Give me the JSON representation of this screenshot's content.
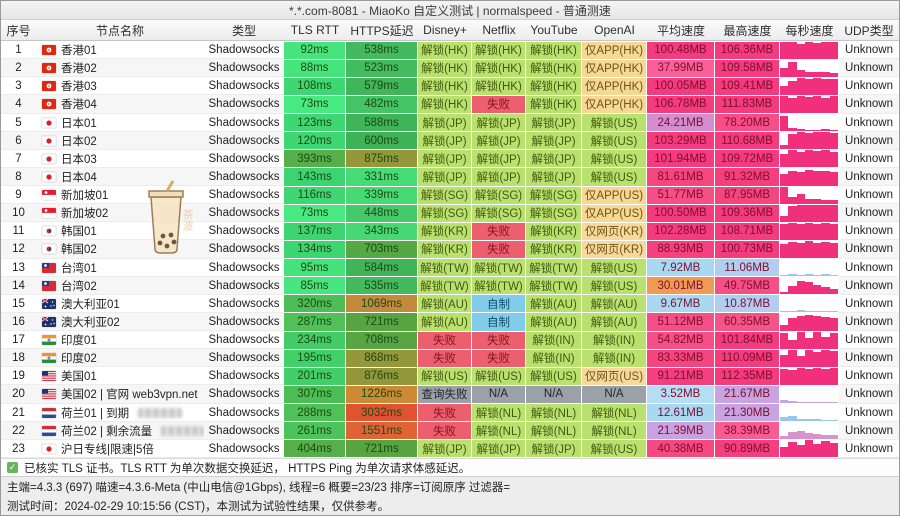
{
  "window": {
    "title": "*.*.com-8081 - MiaoKo 自定义测试 | normalspeed - 普通测速"
  },
  "columns": [
    "序号",
    "节点名称",
    "类型",
    "TLS RTT",
    "HTTPS延迟",
    "Disney+",
    "Netflix",
    "YouTube",
    "OpenAI",
    "平均速度",
    "最高速度",
    "每秒速度",
    "UDP类型"
  ],
  "palette": {
    "ok": {
      "bg": "#b9e16f",
      "fg": "#44590f"
    },
    "fail": {
      "bg": "#ed5f6f",
      "fg": "#7e1420"
    },
    "app": {
      "bg": "#f7d795",
      "fg": "#6e5410"
    },
    "web": {
      "bg": "#f7d99f",
      "fg": "#6e5410"
    },
    "self": {
      "bg": "#7fcdea",
      "fg": "#114a66"
    },
    "na": {
      "bg": "#9ba1a8",
      "fg": "#23262b"
    },
    "latency_fg": "#1c4a14",
    "speed_fg": "#7c0f2e",
    "spark_default": "#f0307c"
  },
  "rows": [
    {
      "no": "1",
      "flag": "hk",
      "name": "香港01",
      "type": "Shadowsocks",
      "tls": [
        "92ms",
        "#45e47c"
      ],
      "https": [
        "538ms",
        "#42ba5d"
      ],
      "media": [
        [
          "解锁(HK)",
          "ok"
        ],
        [
          "解锁(HK)",
          "ok"
        ],
        [
          "解锁(HK)",
          "ok"
        ],
        [
          "仅APP(HK)",
          "app"
        ]
      ],
      "avg": [
        "100.48MB",
        "#f43b7e"
      ],
      "max": [
        "106.36MB",
        "#f43b7e"
      ],
      "spark": {
        "bars": [
          0.95,
          1,
          0.85,
          1,
          0.9,
          1,
          0.95
        ],
        "color": "#f0307c"
      },
      "udp": "Unknown"
    },
    {
      "no": "2",
      "flag": "hk",
      "name": "香港02",
      "type": "Shadowsocks",
      "tls": [
        "88ms",
        "#45e47c"
      ],
      "https": [
        "523ms",
        "#43bc5f"
      ],
      "media": [
        [
          "解锁(HK)",
          "ok"
        ],
        [
          "解锁(HK)",
          "ok"
        ],
        [
          "解锁(HK)",
          "ok"
        ],
        [
          "仅APP(HK)",
          "app"
        ]
      ],
      "avg": [
        "37.99MB",
        "#fa5f97"
      ],
      "max": [
        "109.58MB",
        "#f43b7e"
      ],
      "spark": {
        "bars": [
          0.5,
          0.85,
          0.4,
          0.3,
          0.28,
          0.25,
          0.22
        ],
        "color": "#f0307c"
      },
      "udp": "Unknown"
    },
    {
      "no": "3",
      "flag": "hk",
      "name": "香港03",
      "type": "Shadowsocks",
      "tls": [
        "108ms",
        "#3ed773"
      ],
      "https": [
        "579ms",
        "#40b559"
      ],
      "media": [
        [
          "解锁(HK)",
          "ok"
        ],
        [
          "解锁(HK)",
          "ok"
        ],
        [
          "解锁(HK)",
          "ok"
        ],
        [
          "仅APP(HK)",
          "app"
        ]
      ],
      "avg": [
        "100.05MB",
        "#f43b7e"
      ],
      "max": [
        "109.41MB",
        "#f43b7e"
      ],
      "spark": {
        "bars": [
          0.5,
          0.8,
          1,
          0.95,
          1,
          0.9,
          0.95
        ],
        "color": "#f0307c"
      },
      "udp": "Unknown"
    },
    {
      "no": "4",
      "flag": "hk",
      "name": "香港04",
      "type": "Shadowsocks",
      "tls": [
        "73ms",
        "#48e980"
      ],
      "https": [
        "482ms",
        "#45c465"
      ],
      "media": [
        [
          "解锁(HK)",
          "ok"
        ],
        [
          "失败",
          "fail"
        ],
        [
          "解锁(HK)",
          "ok"
        ],
        [
          "仅APP(HK)",
          "app"
        ]
      ],
      "avg": [
        "106.78MB",
        "#f43b7e"
      ],
      "max": [
        "111.83MB",
        "#f43b7e"
      ],
      "spark": {
        "bars": [
          1,
          0.9,
          1,
          0.95,
          1,
          0.9,
          1
        ],
        "color": "#f0307c"
      },
      "udp": "Unknown"
    },
    {
      "no": "5",
      "flag": "jp",
      "name": "日本01",
      "type": "Shadowsocks",
      "tls": [
        "123ms",
        "#3ed773"
      ],
      "https": [
        "588ms",
        "#40b458"
      ],
      "media": [
        [
          "解锁(JP)",
          "ok"
        ],
        [
          "解锁(JP)",
          "ok"
        ],
        [
          "解锁(JP)",
          "ok"
        ],
        [
          "解锁(US)",
          "ok"
        ]
      ],
      "avg": [
        "24.21MB",
        "#d38ed0"
      ],
      "max": [
        "78.20MB",
        "#f64f87"
      ],
      "spark": {
        "bars": [
          0.9,
          0.18,
          0.1,
          0.08,
          0.08,
          0.1,
          0.08
        ],
        "color": "#f0307c"
      },
      "udp": "Unknown"
    },
    {
      "no": "6",
      "flag": "jp",
      "name": "日本02",
      "type": "Shadowsocks",
      "tls": [
        "120ms",
        "#3ed773"
      ],
      "https": [
        "600ms",
        "#3fb156"
      ],
      "media": [
        [
          "解锁(JP)",
          "ok"
        ],
        [
          "解锁(JP)",
          "ok"
        ],
        [
          "解锁(JP)",
          "ok"
        ],
        [
          "解锁(US)",
          "ok"
        ]
      ],
      "avg": [
        "103.29MB",
        "#f43b7e"
      ],
      "max": [
        "110.68MB",
        "#f43b7e"
      ],
      "spark": {
        "bars": [
          0.25,
          0.9,
          1,
          0.95,
          1,
          1,
          0.95
        ],
        "color": "#f0307c"
      },
      "udp": "Unknown"
    },
    {
      "no": "7",
      "flag": "jp",
      "name": "日本03",
      "type": "Shadowsocks",
      "tls": [
        "393ms",
        "#55b04a"
      ],
      "https": [
        "875ms",
        "#94983a"
      ],
      "media": [
        [
          "解锁(JP)",
          "ok"
        ],
        [
          "解锁(JP)",
          "ok"
        ],
        [
          "解锁(JP)",
          "ok"
        ],
        [
          "解锁(US)",
          "ok"
        ]
      ],
      "avg": [
        "101.94MB",
        "#f43b7e"
      ],
      "max": [
        "109.72MB",
        "#f43b7e"
      ],
      "spark": {
        "bars": [
          0.8,
          1,
          0.9,
          1,
          0.95,
          1,
          0.9
        ],
        "color": "#f0307c"
      },
      "udp": "Unknown"
    },
    {
      "no": "8",
      "flag": "jp",
      "name": "日本04",
      "type": "Shadowsocks",
      "tls": [
        "143ms",
        "#3cd471"
      ],
      "https": [
        "331ms",
        "#47db76"
      ],
      "media": [
        [
          "解锁(JP)",
          "ok"
        ],
        [
          "解锁(JP)",
          "ok"
        ],
        [
          "解锁(JP)",
          "ok"
        ],
        [
          "解锁(US)",
          "ok"
        ]
      ],
      "avg": [
        "81.61MB",
        "#f5477f"
      ],
      "max": [
        "91.32MB",
        "#f43f7e"
      ],
      "spark": {
        "bars": [
          0.65,
          0.85,
          0.8,
          0.88,
          0.82,
          0.85,
          0.8
        ],
        "color": "#f0307c"
      },
      "udp": "Unknown"
    },
    {
      "no": "9",
      "flag": "sg",
      "name": "新加坡01",
      "type": "Shadowsocks",
      "tls": [
        "116ms",
        "#3ed773"
      ],
      "https": [
        "339ms",
        "#46d974"
      ],
      "media": [
        [
          "解锁(SG)",
          "ok"
        ],
        [
          "解锁(SG)",
          "ok"
        ],
        [
          "解锁(SG)",
          "ok"
        ],
        [
          "仅APP(US)",
          "app"
        ]
      ],
      "avg": [
        "51.77MB",
        "#f64f87"
      ],
      "max": [
        "87.95MB",
        "#f5457f"
      ],
      "spark": {
        "bars": [
          1,
          0.4,
          0.55,
          0.3,
          0.25,
          0.2,
          0.2
        ],
        "color": "#f0307c"
      },
      "udp": "Unknown"
    },
    {
      "no": "10",
      "flag": "sg",
      "name": "新加坡02",
      "type": "Shadowsocks",
      "tls": [
        "73ms",
        "#48e980"
      ],
      "https": [
        "448ms",
        "#44ca68"
      ],
      "media": [
        [
          "解锁(SG)",
          "ok"
        ],
        [
          "解锁(SG)",
          "ok"
        ],
        [
          "解锁(SG)",
          "ok"
        ],
        [
          "仅APP(US)",
          "app"
        ]
      ],
      "avg": [
        "100.50MB",
        "#f43b7e"
      ],
      "max": [
        "109.36MB",
        "#f43b7e"
      ],
      "spark": {
        "bars": [
          0.35,
          0.9,
          1,
          0.95,
          1,
          0.95,
          1
        ],
        "color": "#f0307c"
      },
      "udp": "Unknown"
    },
    {
      "no": "11",
      "flag": "kr",
      "name": "韩国01",
      "type": "Shadowsocks",
      "tls": [
        "137ms",
        "#3dd572"
      ],
      "https": [
        "343ms",
        "#46d873"
      ],
      "media": [
        [
          "解锁(KR)",
          "ok"
        ],
        [
          "失败",
          "fail"
        ],
        [
          "解锁(KR)",
          "ok"
        ],
        [
          "仅网页(KR)",
          "web"
        ]
      ],
      "avg": [
        "102.28MB",
        "#f43b7e"
      ],
      "max": [
        "108.71MB",
        "#f43b7e"
      ],
      "spark": {
        "bars": [
          0.9,
          1,
          0.95,
          1,
          0.9,
          1,
          0.95
        ],
        "color": "#f0307c"
      },
      "udp": "Unknown"
    },
    {
      "no": "12",
      "flag": "kr",
      "name": "韩国02",
      "type": "Shadowsocks",
      "tls": [
        "134ms",
        "#3dd572"
      ],
      "https": [
        "703ms",
        "#55a844"
      ],
      "media": [
        [
          "解锁(KR)",
          "ok"
        ],
        [
          "失败",
          "fail"
        ],
        [
          "解锁(KR)",
          "ok"
        ],
        [
          "仅网页(KR)",
          "web"
        ]
      ],
      "avg": [
        "88.93MB",
        "#f5417e"
      ],
      "max": [
        "100.73MB",
        "#f43b7e"
      ],
      "spark": {
        "bars": [
          0.8,
          0.95,
          0.85,
          1,
          0.9,
          0.95,
          0.85
        ],
        "color": "#f0307c"
      },
      "udp": "Unknown"
    },
    {
      "no": "13",
      "flag": "tw",
      "name": "台湾01",
      "type": "Shadowsocks",
      "tls": [
        "95ms",
        "#44e27b"
      ],
      "https": [
        "584ms",
        "#40b458"
      ],
      "media": [
        [
          "解锁(TW)",
          "ok"
        ],
        [
          "解锁(TW)",
          "ok"
        ],
        [
          "解锁(TW)",
          "ok"
        ],
        [
          "解锁(US)",
          "ok"
        ]
      ],
      "avg": [
        "7.92MB",
        "#a9d9f2"
      ],
      "max": [
        "11.06MB",
        "#b3cdf0"
      ],
      "spark": {
        "bars": [
          0.08,
          0.1,
          0.08,
          0.12,
          0.08,
          0.1,
          0.08
        ],
        "color": "#9bc4ee"
      },
      "udp": "Unknown"
    },
    {
      "no": "14",
      "flag": "tw",
      "name": "台湾02",
      "type": "Shadowsocks",
      "tls": [
        "85ms",
        "#46e57d"
      ],
      "https": [
        "535ms",
        "#42ba5d"
      ],
      "media": [
        [
          "解锁(TW)",
          "ok"
        ],
        [
          "解锁(TW)",
          "ok"
        ],
        [
          "解锁(TW)",
          "ok"
        ],
        [
          "解锁(US)",
          "ok"
        ]
      ],
      "avg": [
        "30.01MB",
        "#f09b55"
      ],
      "max": [
        "49.75MB",
        "#f64f87"
      ],
      "spark": {
        "bars": [
          0.15,
          0.5,
          0.75,
          0.7,
          0.55,
          0.4,
          0.3
        ],
        "color": "#f0307c"
      },
      "udp": "Unknown"
    },
    {
      "no": "15",
      "flag": "au",
      "name": "澳大利亚01",
      "type": "Shadowsocks",
      "tls": [
        "320ms",
        "#4dbd55"
      ],
      "https": [
        "1069ms",
        "#c28b3b"
      ],
      "media": [
        [
          "解锁(AU)",
          "ok"
        ],
        [
          "自制",
          "self"
        ],
        [
          "解锁(AU)",
          "ok"
        ],
        [
          "解锁(AU)",
          "ok"
        ]
      ],
      "avg": [
        "9.67MB",
        "#a9d9f2"
      ],
      "max": [
        "10.87MB",
        "#b3cdf0"
      ],
      "spark": {
        "bars": [
          0.1,
          0.08,
          0.12,
          0.08,
          0.1,
          0.08,
          0.1
        ],
        "color": "#9bc4ee"
      },
      "udp": "Unknown"
    },
    {
      "no": "16",
      "flag": "au",
      "name": "澳大利亚02",
      "type": "Shadowsocks",
      "tls": [
        "287ms",
        "#4fc158"
      ],
      "https": [
        "721ms",
        "#58a441"
      ],
      "media": [
        [
          "解锁(AU)",
          "ok"
        ],
        [
          "自制",
          "self"
        ],
        [
          "解锁(AU)",
          "ok"
        ],
        [
          "解锁(AU)",
          "ok"
        ]
      ],
      "avg": [
        "51.12MB",
        "#f64f87"
      ],
      "max": [
        "60.35MB",
        "#f55489"
      ],
      "spark": {
        "bars": [
          0.3,
          0.75,
          0.85,
          0.9,
          0.85,
          0.8,
          0.75
        ],
        "color": "#f0307c"
      },
      "udp": "Unknown"
    },
    {
      "no": "17",
      "flag": "in",
      "name": "印度01",
      "type": "Shadowsocks",
      "tls": [
        "234ms",
        "#43cc65"
      ],
      "https": [
        "708ms",
        "#57a643"
      ],
      "media": [
        [
          "失败",
          "fail"
        ],
        [
          "失败",
          "fail"
        ],
        [
          "解锁(IN)",
          "ok"
        ],
        [
          "解锁(IN)",
          "ok"
        ]
      ],
      "avg": [
        "54.82MB",
        "#f64f87"
      ],
      "max": [
        "101.84MB",
        "#f43b7e"
      ],
      "spark": {
        "bars": [
          0.9,
          0.5,
          0.95,
          0.6,
          1,
          0.7,
          0.9
        ],
        "color": "#f0307c"
      },
      "udp": "Unknown"
    },
    {
      "no": "18",
      "flag": "in",
      "name": "印度02",
      "type": "Shadowsocks",
      "tls": [
        "195ms",
        "#42d069"
      ],
      "https": [
        "868ms",
        "#94983a"
      ],
      "media": [
        [
          "失败",
          "fail"
        ],
        [
          "失败",
          "fail"
        ],
        [
          "解锁(IN)",
          "ok"
        ],
        [
          "解锁(IN)",
          "ok"
        ]
      ],
      "avg": [
        "83.33MB",
        "#f5457f"
      ],
      "max": [
        "110.09MB",
        "#f43b7e"
      ],
      "spark": {
        "bars": [
          0.7,
          0.95,
          0.6,
          1,
          0.85,
          0.95,
          0.9
        ],
        "color": "#f0307c"
      },
      "udp": "Unknown"
    },
    {
      "no": "19",
      "flag": "us",
      "name": "美国01",
      "type": "Shadowsocks",
      "tls": [
        "201ms",
        "#42cf68"
      ],
      "https": [
        "876ms",
        "#93973a"
      ],
      "media": [
        [
          "解锁(US)",
          "ok"
        ],
        [
          "解锁(US)",
          "ok"
        ],
        [
          "解锁(US)",
          "ok"
        ],
        [
          "仅网页(US)",
          "web"
        ]
      ],
      "avg": [
        "91.21MB",
        "#f43f7e"
      ],
      "max": [
        "112.35MB",
        "#f43b7e"
      ],
      "spark": {
        "bars": [
          0.95,
          0.85,
          1,
          0.9,
          1,
          0.95,
          1
        ],
        "color": "#f0307c"
      },
      "udp": "Unknown"
    },
    {
      "no": "20",
      "flag": "us",
      "name": "美国02 | 官网 web3vpn.net",
      "type": "Shadowsocks",
      "tls": [
        "307ms",
        "#4dbd55"
      ],
      "https": [
        "1226ms",
        "#cc8a34"
      ],
      "media": [
        [
          "查询失败",
          "na"
        ],
        [
          "N/A",
          "na"
        ],
        [
          "N/A",
          "na"
        ],
        [
          "N/A",
          "na"
        ]
      ],
      "avg": [
        "3.52MB",
        "#b5ddf4"
      ],
      "max": [
        "21.67MB",
        "#c9a2e2"
      ],
      "spark": {
        "bars": [
          0.18,
          0.1,
          0.06,
          0.05,
          0.04,
          0.04,
          0.04
        ],
        "color": "#c3a4e6"
      },
      "udp": "Unknown"
    },
    {
      "no": "21",
      "flag": "nl",
      "name": "荷兰01 | 到期",
      "blur": true,
      "type": "Shadowsocks",
      "tls": [
        "288ms",
        "#4fc158"
      ],
      "https": [
        "3032ms",
        "#e05331"
      ],
      "media": [
        [
          "失败",
          "fail"
        ],
        [
          "解锁(NL)",
          "ok"
        ],
        [
          "解锁(NL)",
          "ok"
        ],
        [
          "解锁(NL)",
          "ok"
        ]
      ],
      "avg": [
        "12.61MB",
        "#a9d9f2"
      ],
      "max": [
        "21.30MB",
        "#c9a2e2"
      ],
      "spark": {
        "bars": [
          0.22,
          0.28,
          0.15,
          0.1,
          0.1,
          0.08,
          0.08
        ],
        "color": "#9bc4ee"
      },
      "udp": "Unknown"
    },
    {
      "no": "22",
      "flag": "nl",
      "name": "荷兰02 | 剩余流量",
      "blur": true,
      "type": "Shadowsocks",
      "tls": [
        "261ms",
        "#4bc45c"
      ],
      "https": [
        "1551ms",
        "#e06336"
      ],
      "media": [
        [
          "失败",
          "fail"
        ],
        [
          "解锁(NL)",
          "ok"
        ],
        [
          "解锁(NL)",
          "ok"
        ],
        [
          "解锁(NL)",
          "ok"
        ]
      ],
      "avg": [
        "21.39MB",
        "#c9a2e2"
      ],
      "max": [
        "38.39MB",
        "#f85c91"
      ],
      "spark": {
        "bars": [
          0.2,
          0.42,
          0.5,
          0.38,
          0.3,
          0.25,
          0.22
        ],
        "color": "#d893cc"
      },
      "udp": "Unknown"
    },
    {
      "no": "23",
      "flag": "jp",
      "name": "沪日专线|限速|5倍",
      "type": "Shadowsocks",
      "tls": [
        "404ms",
        "#55b04a"
      ],
      "https": [
        "721ms",
        "#58a441"
      ],
      "media": [
        [
          "解锁(JP)",
          "ok"
        ],
        [
          "解锁(JP)",
          "ok"
        ],
        [
          "解锁(JP)",
          "ok"
        ],
        [
          "解锁(US)",
          "ok"
        ]
      ],
      "avg": [
        "40.38MB",
        "#f6497f"
      ],
      "max": [
        "90.89MB",
        "#f43f7e"
      ],
      "spark": {
        "bars": [
          0.6,
          0.9,
          0.7,
          1,
          0.8,
          0.95,
          0.85
        ],
        "color": "#f0307c"
      },
      "udp": "Unknown"
    }
  ],
  "footer": {
    "check_icon": "✓",
    "line1": "已核实 TLS 证书。TLS RTT 为单次数据交换延迟， HTTPS Ping 为单次请求体感延迟。",
    "line2": "主端=4.3.3 (697) 喵速=4.3.6-Meta (中山电信@1Gbps), 线程=6 概要=23/23 排序=订阅原序 过滤器=",
    "line3": "测试时间：2024-02-29 10:15:56 (CST)，本测试为试验性结果，仅供参考。"
  }
}
